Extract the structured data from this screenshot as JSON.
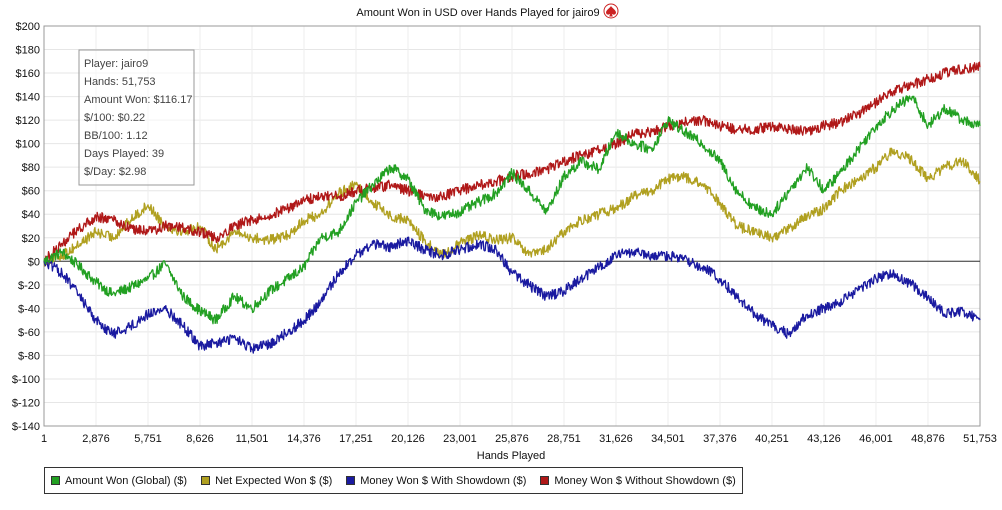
{
  "chart_data": {
    "type": "line",
    "title": "Amount Won in USD over Hands Played for jairo9",
    "xlabel": "Hands Played",
    "ylabel": "",
    "xlim": [
      1,
      51753
    ],
    "ylim": [
      -140,
      200
    ],
    "x_ticks": [
      "1",
      "2,876",
      "5,751",
      "8,626",
      "11,501",
      "14,376",
      "17,251",
      "20,126",
      "23,001",
      "25,876",
      "28,751",
      "31,626",
      "34,501",
      "37,376",
      "40,251",
      "43,126",
      "46,001",
      "48,876",
      "51,753"
    ],
    "y_ticks": [
      "$200",
      "$180",
      "$160",
      "$140",
      "$120",
      "$100",
      "$80",
      "$60",
      "$40",
      "$20",
      "$0",
      "$-20",
      "$-40",
      "$-60",
      "$-80",
      "$-100",
      "$-120",
      "$-140"
    ],
    "grid": true,
    "legend_position": "bottom",
    "x": [
      1,
      1000,
      2000,
      2876,
      3800,
      4800,
      5751,
      6700,
      7700,
      8626,
      9500,
      10500,
      11501,
      12500,
      13500,
      14376,
      15300,
      16300,
      17251,
      18200,
      19200,
      20126,
      21000,
      22000,
      23001,
      24000,
      25000,
      25876,
      26800,
      27800,
      28751,
      29700,
      30700,
      31626,
      32600,
      33600,
      34501,
      35400,
      36400,
      37376,
      38300,
      39300,
      40251,
      41200,
      42200,
      43126,
      44000,
      45000,
      46001,
      47000,
      48000,
      48876,
      49800,
      50800,
      51753
    ],
    "series": [
      {
        "name": "Amount Won (Global) ($)",
        "color": "#22a022",
        "values": [
          0,
          8,
          -5,
          -18,
          -28,
          -22,
          -15,
          -2,
          -30,
          -42,
          -50,
          -30,
          -40,
          -25,
          -15,
          -5,
          20,
          25,
          50,
          65,
          80,
          70,
          45,
          38,
          42,
          50,
          58,
          75,
          60,
          42,
          72,
          85,
          78,
          110,
          100,
          95,
          120,
          110,
          100,
          85,
          60,
          45,
          40,
          60,
          80,
          60,
          75,
          95,
          115,
          130,
          140,
          115,
          130,
          120,
          115
        ]
      },
      {
        "name": "Net Expected Won $ ($)",
        "color": "#b0a020",
        "values": [
          0,
          5,
          15,
          25,
          20,
          35,
          48,
          30,
          25,
          30,
          10,
          25,
          20,
          18,
          22,
          35,
          40,
          58,
          65,
          50,
          38,
          35,
          18,
          5,
          15,
          22,
          18,
          20,
          5,
          10,
          25,
          35,
          40,
          45,
          55,
          60,
          70,
          72,
          65,
          50,
          30,
          25,
          20,
          28,
          38,
          45,
          60,
          70,
          80,
          95,
          85,
          70,
          80,
          85,
          68
        ]
      },
      {
        "name": "Money Won $ With Showdown ($)",
        "color": "#1a1aa0",
        "values": [
          0,
          -10,
          -30,
          -50,
          -62,
          -55,
          -45,
          -40,
          -55,
          -72,
          -70,
          -65,
          -75,
          -70,
          -60,
          -50,
          -35,
          -10,
          5,
          15,
          12,
          18,
          10,
          5,
          10,
          15,
          10,
          -10,
          -20,
          -30,
          -25,
          -15,
          -5,
          5,
          8,
          3,
          5,
          2,
          -5,
          -15,
          -30,
          -45,
          -55,
          -62,
          -45,
          -40,
          -35,
          -25,
          -15,
          -10,
          -20,
          -30,
          -45,
          -42,
          -50
        ]
      },
      {
        "name": "Money Won $ Without Showdown ($)",
        "color": "#b01818",
        "values": [
          0,
          15,
          28,
          38,
          35,
          28,
          25,
          30,
          28,
          25,
          20,
          30,
          35,
          40,
          45,
          52,
          55,
          55,
          60,
          62,
          65,
          60,
          55,
          55,
          60,
          65,
          68,
          72,
          75,
          78,
          85,
          90,
          95,
          100,
          108,
          110,
          115,
          118,
          120,
          115,
          112,
          112,
          115,
          112,
          110,
          115,
          118,
          125,
          135,
          145,
          150,
          155,
          160,
          163,
          165
        ]
      }
    ]
  },
  "stats": [
    "Player: jairo9",
    "Hands: 51,753",
    "Amount Won: $116.17",
    "$/100: $0.22",
    "BB/100: 1.12",
    "Days Played: 39",
    "$/Day: $2.98"
  ],
  "icons": {
    "title_icon": "spade-logo-icon"
  },
  "legend": [
    {
      "label": "Amount Won (Global) ($)",
      "color": "#22a022"
    },
    {
      "label": "Net Expected Won $ ($)",
      "color": "#b0a020"
    },
    {
      "label": "Money Won $ With Showdown ($)",
      "color": "#1a1aa0"
    },
    {
      "label": "Money Won $ Without Showdown ($)",
      "color": "#b01818"
    }
  ]
}
